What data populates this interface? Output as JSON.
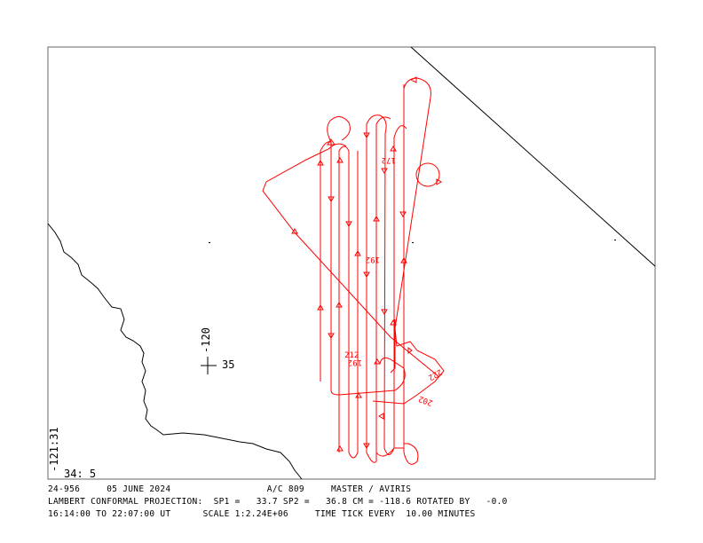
{
  "map": {
    "track_color": "#ff0000",
    "coast_color": "#000000",
    "frame_color": "#808080",
    "grid_marker": {
      "lon_label": "-120",
      "lat_label": "35"
    },
    "corner_lon_label": "-121:31",
    "corner_lat_label": "34: 5",
    "track_labels": [
      "172",
      "192",
      "212",
      "192",
      "222",
      "202"
    ]
  },
  "footer": {
    "line1": "24-956     05 JUNE 2024                  A/C 809     MASTER / AVIRIS",
    "line2": "LAMBERT CONFORMAL PROJECTION:  SP1 =   33.7 SP2 =   36.8 CM = -118.6 ROTATED BY   -0.0",
    "line3": "16:14:00 TO 22:07:00 UT      SCALE 1:2.24E+06     TIME TICK EVERY  10.00 MINUTES"
  }
}
